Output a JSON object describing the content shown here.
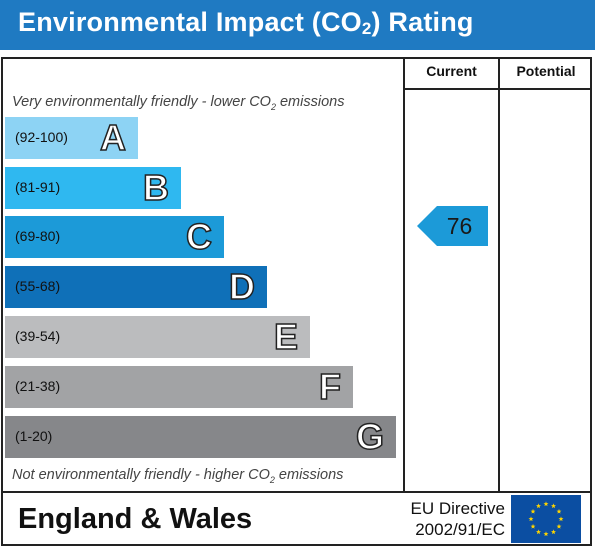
{
  "header": {
    "title_pre": "Environmental Impact (CO",
    "title_sub": "2",
    "title_post": ") Rating"
  },
  "columns": {
    "current": "Current",
    "potential": "Potential"
  },
  "captions": {
    "top_pre": "Very environmentally friendly - lower CO",
    "top_sub": "2",
    "top_post": " emissions",
    "bottom_pre": "Not environmentally friendly - higher CO",
    "bottom_sub": "2",
    "bottom_post": " emissions"
  },
  "bands": [
    {
      "range": "(92-100)",
      "letter": "A",
      "color": "#8dd3f4"
    },
    {
      "range": "(81-91)",
      "letter": "B",
      "color": "#2fb8f0"
    },
    {
      "range": "(69-80)",
      "letter": "C",
      "color": "#1c9ad8"
    },
    {
      "range": "(55-68)",
      "letter": "D",
      "color": "#0f70b8"
    },
    {
      "range": "(39-54)",
      "letter": "E",
      "color": "#bbbcbe"
    },
    {
      "range": "(21-38)",
      "letter": "F",
      "color": "#a2a3a5"
    },
    {
      "range": "(1-20)",
      "letter": "G",
      "color": "#86878a"
    }
  ],
  "current_rating": {
    "value": "76",
    "color": "#1c9ad8"
  },
  "footer": {
    "region": "England & Wales",
    "directive_line1": "EU Directive",
    "directive_line2": "2002/91/EC",
    "flag_color": "#0b4ea2",
    "star_color": "#ffd500"
  }
}
